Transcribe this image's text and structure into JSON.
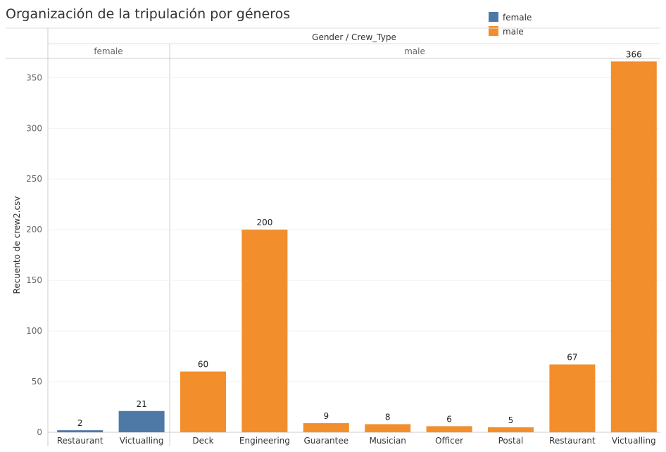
{
  "chart_data": {
    "type": "bar",
    "title": "Organización de la tripulación por géneros",
    "column_header": "Gender / Crew_Type",
    "ylabel": "Recuento de crew2.csv",
    "ylim": [
      0,
      350
    ],
    "yticks": [
      0,
      50,
      100,
      150,
      200,
      250,
      300,
      350
    ],
    "grid": true,
    "legend_position": "top-right",
    "legend": [
      {
        "name": "female",
        "color": "#4e79a7"
      },
      {
        "name": "male",
        "color": "#f28e2b"
      }
    ],
    "panes": [
      {
        "label": "female",
        "color": "#4e79a7",
        "categories": [
          "Restaurant",
          "Victualling"
        ],
        "values": [
          2,
          21
        ]
      },
      {
        "label": "male",
        "color": "#f28e2b",
        "categories": [
          "Deck",
          "Engineering",
          "Guarantee",
          "Musician",
          "Officer",
          "Postal",
          "Restaurant",
          "Victualling"
        ],
        "values": [
          60,
          200,
          9,
          8,
          6,
          5,
          67,
          366
        ]
      }
    ]
  }
}
